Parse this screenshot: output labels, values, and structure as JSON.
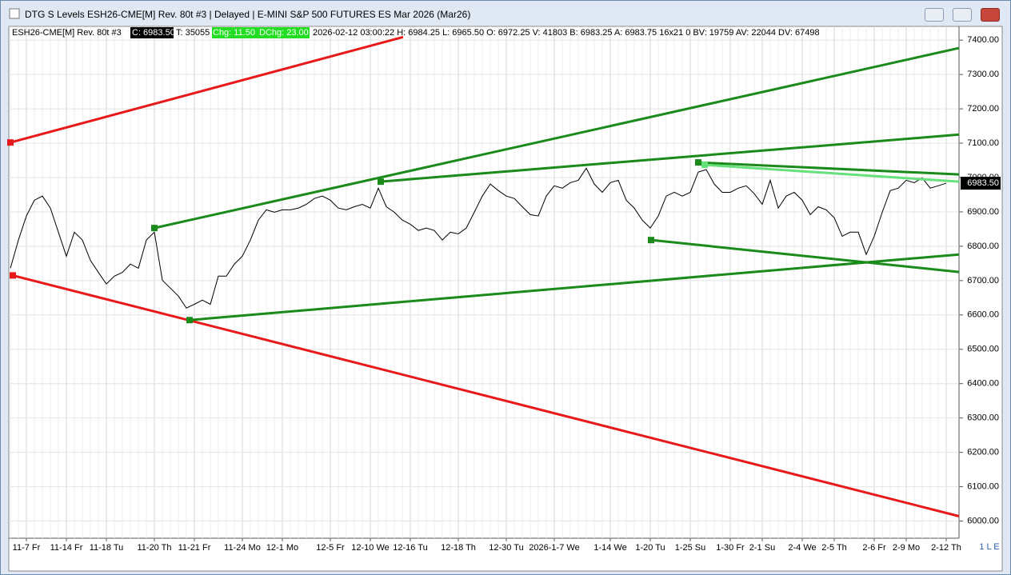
{
  "window": {
    "title": "DTG S Levels ESH26-CME[M]  Rev. 80t #3 | Delayed | E-MINI S&P 500 FUTURES ES Mar 2026 (Mar26)",
    "status": "1 L E"
  },
  "header": {
    "symbol": "ESH26-CME[M]  Rev. 80t #3",
    "close": "C: 6983.50",
    "ticks": "T: 35055",
    "change": "Chg: 11.50",
    "dchange": "DChg: 23.00",
    "details": "2026-02-12 03:00:22 H: 6984.25 L: 6965.50 O: 6972.25 V: 41803 B: 6983.25 A: 6983.75 16x21 0 BV: 19759 AV: 22044 DV: 67498"
  },
  "chart_data": {
    "type": "line",
    "categories": [
      null,
      null,
      "11-7 Fr",
      null,
      null,
      null,
      null,
      "11-14 Fr",
      null,
      null,
      null,
      null,
      "11-18 Tu",
      null,
      null,
      null,
      null,
      null,
      "11-20 Th",
      null,
      null,
      null,
      null,
      "11-21 Fr",
      null,
      null,
      null,
      null,
      null,
      "11-24 Mo",
      null,
      null,
      null,
      null,
      "12-1 Mo",
      null,
      null,
      null,
      null,
      null,
      "12-5 Fr",
      null,
      null,
      null,
      null,
      "12-10 We",
      null,
      null,
      null,
      null,
      "12-16 Tu",
      null,
      null,
      null,
      null,
      null,
      "12-18 Th",
      null,
      null,
      null,
      null,
      null,
      "12-30 Tu",
      null,
      null,
      null,
      null,
      null,
      "2026-1-7 We",
      null,
      null,
      null,
      null,
      null,
      null,
      "1-14 We",
      null,
      null,
      null,
      null,
      "1-20 Tu",
      null,
      null,
      null,
      null,
      "1-25 Su",
      null,
      null,
      null,
      null,
      "1-30 Fr",
      null,
      null,
      null,
      "2-1 Su",
      null,
      null,
      null,
      null,
      "2-4 We",
      null,
      null,
      null,
      "2-5 Th",
      null,
      null,
      null,
      null,
      "2-6 Fr",
      null,
      null,
      null,
      "2-9 Mo",
      null,
      null,
      null,
      null,
      "2-12 Th"
    ],
    "series": [
      {
        "color": "#000000",
        "values": [
          6736,
          6818,
          6888,
          6934,
          6946,
          6911,
          6841,
          6771,
          6841,
          6818,
          6759,
          6724,
          6690,
          6713,
          6724,
          6748,
          6736,
          6818,
          6841,
          6701,
          6678,
          6655,
          6620,
          6631,
          6643,
          6631,
          6713,
          6713,
          6748,
          6771,
          6818,
          6876,
          6906,
          6899,
          6906,
          6906,
          6911,
          6922,
          6939,
          6946,
          6934,
          6911,
          6906,
          6915,
          6922,
          6911,
          6969,
          6915,
          6899,
          6876,
          6864,
          6846,
          6853,
          6846,
          6818,
          6841,
          6836,
          6853,
          6899,
          6946,
          6981,
          6962,
          6946,
          6939,
          6915,
          6892,
          6888,
          6946,
          6976,
          6969,
          6985,
          6992,
          7027,
          6981,
          6957,
          6985,
          6992,
          6934,
          6911,
          6876,
          6853,
          6888,
          6946,
          6957,
          6946,
          6957,
          7016,
          7023,
          6981,
          6957,
          6957,
          6969,
          6976,
          6953,
          6922,
          6992,
          6911,
          6946,
          6957,
          6934,
          6892,
          6915,
          6906,
          6883,
          6829,
          6841,
          6841,
          6776,
          6829,
          6899,
          6962,
          6969,
          6992,
          6985,
          6999,
          6969,
          6976,
          6983.5
        ]
      }
    ],
    "trendlines": [
      {
        "color": "#e8191a",
        "x": [
          0,
          49.1
        ],
        "y": [
          7102,
          7409
        ]
      },
      {
        "color": "#e8191a",
        "x": [
          0.3,
          118.6
        ],
        "y": [
          6715,
          6014
        ]
      },
      {
        "color": "#1a8a1a",
        "x": [
          18,
          118.6
        ],
        "y": [
          6853,
          7377
        ]
      },
      {
        "color": "#1a8a1a",
        "x": [
          46.3,
          118.6
        ],
        "y": [
          6988,
          7125
        ]
      },
      {
        "color": "#1a8a1a",
        "x": [
          22.4,
          118.6
        ],
        "y": [
          6585,
          6776
        ]
      },
      {
        "color": "#1a8a1a",
        "x": [
          80.1,
          118.6
        ],
        "y": [
          6818,
          6725
        ]
      },
      {
        "color": "#1a8a1a",
        "x": [
          86,
          118.6
        ],
        "y": [
          7044,
          7009
        ]
      },
      {
        "color": "#66e07a",
        "x": [
          86.8,
          118.6
        ],
        "y": [
          7037,
          6988
        ]
      }
    ],
    "price_tag": "6983.50",
    "ylim": [
      5950,
      7440
    ],
    "yticks": [
      {
        "value": 6000,
        "label": "6000.00"
      },
      {
        "value": 6100,
        "label": "6100.00"
      },
      {
        "value": 6200,
        "label": "6200.00"
      },
      {
        "value": 6300,
        "label": "6300.00"
      },
      {
        "value": 6400,
        "label": "6400.00"
      },
      {
        "value": 6500,
        "label": "6500.00"
      },
      {
        "value": 6600,
        "label": "6600.00"
      },
      {
        "value": 6700,
        "label": "6700.00"
      },
      {
        "value": 6800,
        "label": "6800.00"
      },
      {
        "value": 6900,
        "label": "6900.00"
      },
      {
        "value": 7000,
        "label": "7000.00"
      },
      {
        "value": 7100,
        "label": "7100.00"
      },
      {
        "value": 7200,
        "label": "7200.00"
      },
      {
        "value": 7300,
        "label": "7300.00"
      },
      {
        "value": 7400,
        "label": "7400.00"
      }
    ],
    "grid": true
  }
}
